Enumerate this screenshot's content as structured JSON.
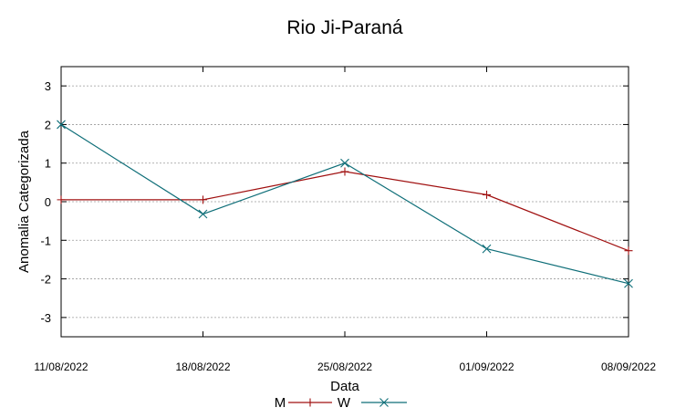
{
  "chart_data": {
    "type": "line",
    "title": "Rio Ji-Paraná",
    "xlabel": "Data",
    "ylabel": "Anomalia Categorizada",
    "categories": [
      "11/08/2022",
      "18/08/2022",
      "25/08/2022",
      "01/09/2022",
      "08/09/2022"
    ],
    "ylim": [
      -3.5,
      3.5
    ],
    "yticks": [
      3,
      2,
      1,
      0,
      -1,
      -2,
      -3
    ],
    "ytick_labels": [
      "3",
      "2",
      "1",
      "0",
      "-1",
      "-2",
      "-3"
    ],
    "grid": "horizontal dotted",
    "legend_position": "bottom",
    "series": [
      {
        "name": "M",
        "marker": "+",
        "color": "#a01010",
        "values": [
          0.05,
          0.05,
          0.78,
          0.18,
          -1.27
        ]
      },
      {
        "name": "W",
        "marker": "x",
        "color": "#0e6e78",
        "values": [
          2.0,
          -0.32,
          1.0,
          -1.22,
          -2.12
        ]
      }
    ]
  }
}
